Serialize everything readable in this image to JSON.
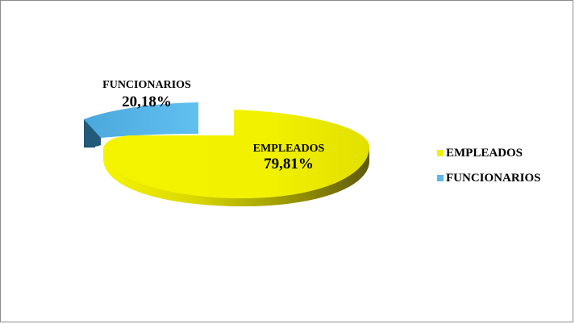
{
  "chart_data": {
    "type": "pie",
    "style": "3d-exploded",
    "categories": [
      "EMPLEADOS",
      "FUNCIONARIOS"
    ],
    "values": [
      79.81,
      20.18
    ],
    "value_labels": [
      "79,81%",
      "20,18%"
    ],
    "colors": [
      "#F2F200",
      "#5BB8EA"
    ],
    "legend": {
      "position": "right",
      "entries": [
        "EMPLEADOS",
        "FUNCIONARIOS"
      ]
    },
    "title": ""
  }
}
